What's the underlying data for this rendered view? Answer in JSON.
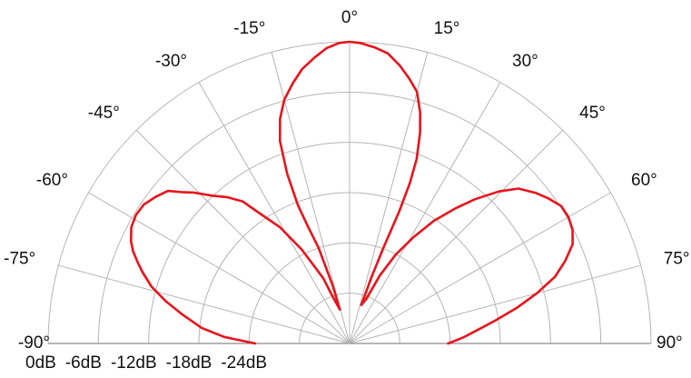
{
  "chart_data": {
    "type": "polar",
    "layout": "half-polar",
    "angle_ticks": [
      {
        "angle": -90,
        "label": "-90°"
      },
      {
        "angle": -75,
        "label": "-75°"
      },
      {
        "angle": -60,
        "label": "-60°"
      },
      {
        "angle": -45,
        "label": "-45°"
      },
      {
        "angle": -30,
        "label": "-30°"
      },
      {
        "angle": -15,
        "label": "-15°"
      },
      {
        "angle": 0,
        "label": "0°"
      },
      {
        "angle": 15,
        "label": "15°"
      },
      {
        "angle": 30,
        "label": "30°"
      },
      {
        "angle": 45,
        "label": "45°"
      },
      {
        "angle": 60,
        "label": "60°"
      },
      {
        "angle": 75,
        "label": "75°"
      },
      {
        "angle": 90,
        "label": "90°"
      }
    ],
    "radial_ticks": [
      {
        "db": 0,
        "label": "0dB"
      },
      {
        "db": -6,
        "label": "-6dB"
      },
      {
        "db": -12,
        "label": "-12dB"
      },
      {
        "db": -18,
        "label": "-18dB"
      },
      {
        "db": -24,
        "label": "-24dB"
      }
    ],
    "rlim": [
      -30,
      0
    ],
    "radial_unit": "dB",
    "grid": true,
    "series": [
      {
        "color": "#e8141b",
        "points": [
          [
            -90,
            -20.6
          ],
          [
            -87,
            -17.5
          ],
          [
            -84,
            -15.2
          ],
          [
            -80,
            -13.0
          ],
          [
            -77,
            -11.2
          ],
          [
            -74,
            -9.5
          ],
          [
            -71,
            -8.2
          ],
          [
            -69,
            -7.4
          ],
          [
            -67,
            -6.6
          ],
          [
            -65,
            -6.0
          ],
          [
            -62,
            -5.4
          ],
          [
            -59,
            -5.2
          ],
          [
            -56,
            -5.3
          ],
          [
            -53,
            -5.8
          ],
          [
            -50,
            -6.4
          ],
          [
            -48,
            -7.5
          ],
          [
            -46,
            -8.4
          ],
          [
            -43,
            -9.9
          ],
          [
            -40,
            -11.0
          ],
          [
            -37,
            -12.3
          ],
          [
            -35,
            -14.0
          ],
          [
            -31,
            -16.5
          ],
          [
            -27,
            -19.5
          ],
          [
            -22,
            -23.0
          ],
          [
            -20,
            -25.0
          ],
          [
            -16,
            -26.5
          ],
          [
            -16.3,
            -24.0
          ],
          [
            -18,
            -20.0
          ],
          [
            -19.7,
            -17.5
          ],
          [
            -20.5,
            -15.3
          ],
          [
            -20.2,
            -12.0
          ],
          [
            -19.0,
            -8.7
          ],
          [
            -17.2,
            -6.6
          ],
          [
            -15.0,
            -4.9
          ],
          [
            -12.3,
            -3.5
          ],
          [
            -9.8,
            -2.3
          ],
          [
            -7.0,
            -1.35
          ],
          [
            -4.5,
            -0.55
          ],
          [
            -2.0,
            -0.1
          ],
          [
            0,
            0
          ],
          [
            2.0,
            -0.1
          ],
          [
            4.8,
            -0.45
          ],
          [
            7.5,
            -0.9
          ],
          [
            10.2,
            -1.9
          ],
          [
            12.7,
            -3.0
          ],
          [
            15.0,
            -4.1
          ],
          [
            17.0,
            -6.0
          ],
          [
            18.5,
            -7.9
          ],
          [
            20.0,
            -10.5
          ],
          [
            20.6,
            -13.0
          ],
          [
            20.6,
            -16.0
          ],
          [
            19.5,
            -19.8
          ],
          [
            18.3,
            -23.0
          ],
          [
            17.0,
            -26.0
          ],
          [
            20.5,
            -25.3
          ],
          [
            24.0,
            -22.6
          ],
          [
            27.5,
            -20.0
          ],
          [
            31.0,
            -17.7
          ],
          [
            34.5,
            -15.2
          ],
          [
            38.0,
            -13.0
          ],
          [
            41.0,
            -11.0
          ],
          [
            44.5,
            -8.8
          ],
          [
            47.5,
            -7.2
          ],
          [
            51.0,
            -6.2
          ],
          [
            54.0,
            -5.5
          ],
          [
            57.0,
            -4.9
          ],
          [
            60.0,
            -4.85
          ],
          [
            63.0,
            -5.1
          ],
          [
            66.0,
            -5.7
          ],
          [
            69.0,
            -7.0
          ],
          [
            72.0,
            -8.5
          ],
          [
            75.0,
            -10.7
          ],
          [
            78.0,
            -13.0
          ],
          [
            81.0,
            -15.3
          ],
          [
            84.0,
            -17.2
          ],
          [
            87.0,
            -18.7
          ],
          [
            90.0,
            -20.2
          ]
        ]
      }
    ]
  }
}
